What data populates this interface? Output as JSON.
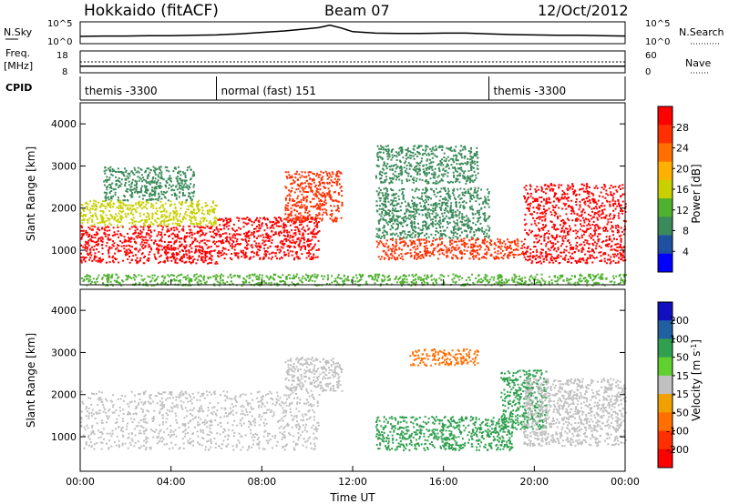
{
  "header": {
    "station": "Hokkaido (fitACF)",
    "beam": "Beam 07",
    "date": "12/Oct/2012"
  },
  "colors": {
    "power_scale": [
      "#0000ff",
      "#2050a0",
      "#3a8a5a",
      "#50b030",
      "#c8d000",
      "#ffb000",
      "#ff7000",
      "#ff3000",
      "#ff0000"
    ],
    "velocity_scale": [
      "#1010c0",
      "#2060a0",
      "#30a050",
      "#60d030",
      "#c0c0c0",
      "#f0a000",
      "#ff7000",
      "#ff3000",
      "#ff0000"
    ],
    "ground_scatter": "#c0c0c0"
  },
  "chart_data": [
    {
      "id": "sky_noise",
      "type": "line",
      "left_label": "N.Sky",
      "right_label": "N.Search",
      "left_ticks": [
        "10^5",
        "10^0"
      ],
      "right_ticks": [
        "10^5",
        "10^0"
      ],
      "x": [
        "00:00",
        "01:00",
        "02:00",
        "03:00",
        "04:00",
        "05:00",
        "06:00",
        "07:00",
        "08:00",
        "09:00",
        "10:00",
        "10:30",
        "11:00",
        "11:30",
        "12:00",
        "13:00",
        "14:00",
        "15:00",
        "16:00",
        "17:00",
        "18:00",
        "19:00",
        "20:00",
        "21:00",
        "22:00",
        "23:00",
        "24:00"
      ],
      "series": [
        {
          "values": [
            1.5,
            1.6,
            1.6,
            1.7,
            1.7,
            1.8,
            1.9,
            2.2,
            2.6,
            3.0,
            3.6,
            3.9,
            4.6,
            3.8,
            2.8,
            2.4,
            2.3,
            2.3,
            2.4,
            2.4,
            2.2,
            2.0,
            1.9,
            1.8,
            1.8,
            1.7,
            1.6
          ]
        }
      ]
    },
    {
      "id": "frequency_nave",
      "type": "line",
      "left_label": "Freq.",
      "left_unit": "[MHz]",
      "right_label": "Nave",
      "left_ticks": [
        "18",
        "8"
      ],
      "right_ticks": [
        "60",
        "0"
      ],
      "x": [
        "00:00",
        "24:00"
      ],
      "series": [
        {
          "name": "Freq",
          "values": [
            11,
            11
          ]
        },
        {
          "name": "Nave",
          "values": [
            30,
            30
          ]
        }
      ]
    },
    {
      "id": "cpid",
      "type": "table",
      "label": "CPID",
      "segments": [
        {
          "start": "00:00",
          "end": "06:00",
          "text": "themis -3300"
        },
        {
          "start": "06:00",
          "end": "18:00",
          "text": "normal (fast) 151"
        },
        {
          "start": "18:00",
          "end": "24:00",
          "text": "themis -3300"
        }
      ]
    },
    {
      "id": "power",
      "type": "heatmap",
      "ylabel": "Slant Range [km]",
      "yticks": [
        "1000",
        "2000",
        "3000",
        "4000"
      ],
      "ylim": [
        180,
        4500
      ],
      "xlim": [
        "00:00",
        "24:00"
      ],
      "colorbar_label": "Power [dB]",
      "colorbar_ticks": [
        "4",
        "8",
        "12",
        "16",
        "20",
        "24",
        "28"
      ],
      "scatter_regions": [
        {
          "t0": 0.0,
          "t1": 6.0,
          "r0": 700,
          "r1": 1600,
          "level": 30
        },
        {
          "t0": 0.0,
          "t1": 6.0,
          "r0": 1600,
          "r1": 2200,
          "level": 16
        },
        {
          "t0": 6.0,
          "t1": 10.5,
          "r0": 800,
          "r1": 1800,
          "level": 28
        },
        {
          "t0": 9.0,
          "t1": 11.5,
          "r0": 1700,
          "r1": 2900,
          "level": 26
        },
        {
          "t0": 1.0,
          "t1": 5.0,
          "r0": 2200,
          "r1": 3000,
          "level": 10
        },
        {
          "t0": 13.0,
          "t1": 19.5,
          "r0": 800,
          "r1": 1300,
          "level": 24
        },
        {
          "t0": 13.0,
          "t1": 18.0,
          "r0": 1300,
          "r1": 2500,
          "level": 8
        },
        {
          "t0": 13.0,
          "t1": 17.5,
          "r0": 2600,
          "r1": 3500,
          "level": 10
        },
        {
          "t0": 19.5,
          "t1": 24.0,
          "r0": 700,
          "r1": 2600,
          "level": 29
        },
        {
          "t0": 0.0,
          "t1": 24.0,
          "r0": 180,
          "r1": 450,
          "level": 12
        }
      ]
    },
    {
      "id": "velocity",
      "type": "heatmap",
      "ylabel": "Slant Range [km]",
      "yticks": [
        "1000",
        "2000",
        "3000",
        "4000"
      ],
      "ylim": [
        180,
        4500
      ],
      "xlim": [
        "00:00",
        "24:00"
      ],
      "xticks": [
        "00:00",
        "04:00",
        "08:00",
        "12:00",
        "16:00",
        "20:00",
        "00:00"
      ],
      "xlabel": "Time UT",
      "colorbar_label": "Velocity [m s",
      "colorbar_label_sup": "-1",
      "colorbar_label_end": "]",
      "colorbar_ticks": [
        "200",
        "100",
        "50",
        "15",
        "-15",
        "-50",
        "-100",
        "-200"
      ],
      "scatter_regions": [
        {
          "t0": 0.0,
          "t1": 10.5,
          "r0": 700,
          "r1": 2100,
          "velocity": 0
        },
        {
          "t0": 9.0,
          "t1": 11.5,
          "r0": 2100,
          "r1": 2900,
          "velocity": 0
        },
        {
          "t0": 13.0,
          "t1": 19.0,
          "r0": 700,
          "r1": 1500,
          "velocity": 50
        },
        {
          "t0": 14.5,
          "t1": 17.5,
          "r0": 2700,
          "r1": 3100,
          "velocity": -50
        },
        {
          "t0": 18.5,
          "t1": 20.5,
          "r0": 1200,
          "r1": 2600,
          "velocity": 50
        },
        {
          "t0": 19.5,
          "t1": 24.0,
          "r0": 800,
          "r1": 2400,
          "velocity": 0
        }
      ]
    }
  ]
}
